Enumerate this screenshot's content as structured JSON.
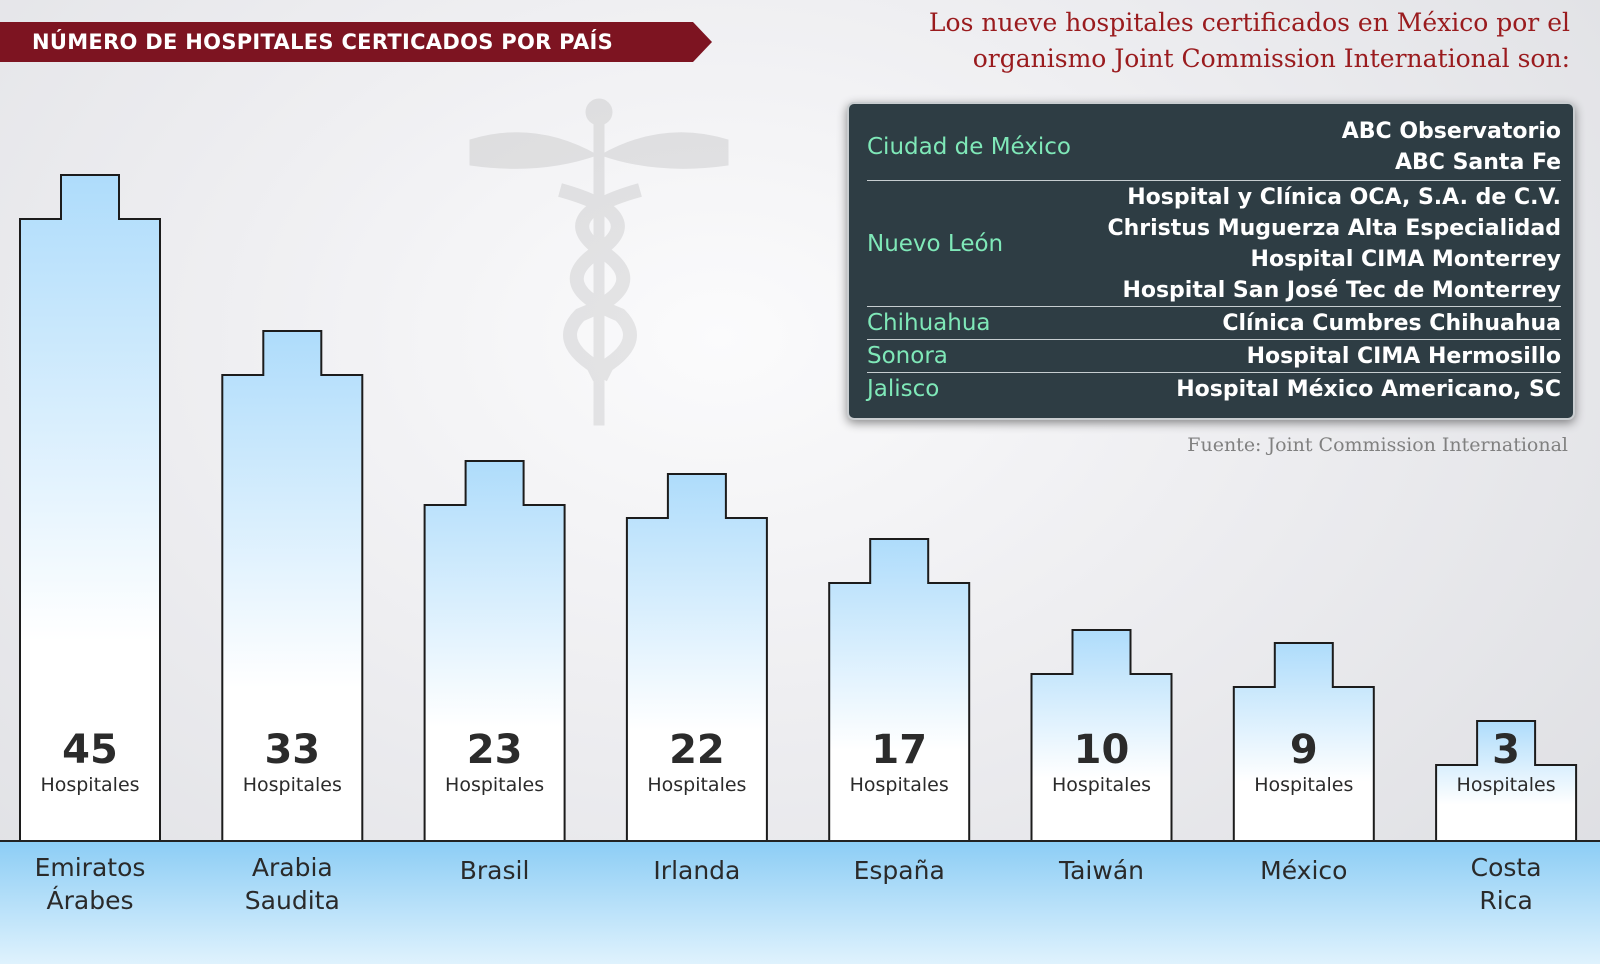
{
  "banner": {
    "title": "NÚMERO DE HOSPITALES CERTICADOS POR PAÍS"
  },
  "headline": {
    "line1": "Los nueve hospitales certificados en México por el",
    "line2": "organismo Joint Commission International son:"
  },
  "mexico_table": [
    {
      "state": "Ciudad de México",
      "hospitals": [
        "ABC Observatorio",
        "ABC Santa Fe"
      ]
    },
    {
      "state": "Nuevo León",
      "hospitals": [
        "Hospital y Clínica OCA, S.A. de C.V.",
        "Christus Muguerza Alta Especialidad",
        "Hospital CIMA Monterrey",
        "Hospital San José Tec de Monterrey"
      ]
    },
    {
      "state": "Chihuahua",
      "hospitals": [
        "Clínica Cumbres Chihuahua"
      ]
    },
    {
      "state": "Sonora",
      "hospitals": [
        "Hospital CIMA Hermosillo"
      ]
    },
    {
      "state": "Jalisco",
      "hospitals": [
        "Hospital México Americano, SC"
      ]
    }
  ],
  "source": "Fuente: Joint Commission International",
  "colors": {
    "banner": "#7d1421",
    "headline": "#9a1b1e",
    "panel_bg": "#2e3d44",
    "state_text": "#7fe8b8",
    "bar_top": "#aedcfb",
    "bar_bottom": "#ffffff",
    "ground": "#8ccdf5"
  },
  "chart_data": {
    "type": "bar",
    "title": "NÚMERO DE HOSPITALES CERTICADOS POR PAÍS",
    "categories": [
      [
        "Emiratos",
        "Árabes"
      ],
      [
        "Arabia",
        "Saudita"
      ],
      [
        "Brasil"
      ],
      [
        "Irlanda"
      ],
      [
        "España"
      ],
      [
        "Taiwán"
      ],
      [
        "México"
      ],
      [
        "Costa",
        "Rica"
      ]
    ],
    "values": [
      45,
      33,
      23,
      22,
      17,
      10,
      9,
      3
    ],
    "unit_label": "Hospitales",
    "xlabel": "",
    "ylabel": ""
  }
}
